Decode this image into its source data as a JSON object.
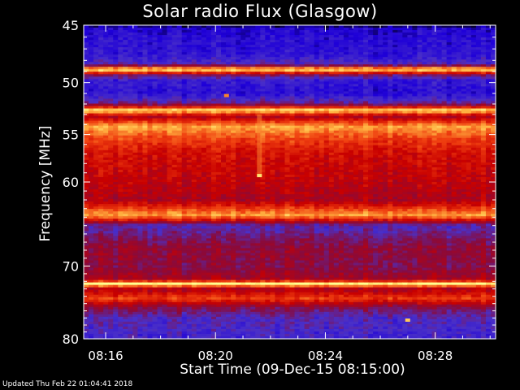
{
  "chart_data": {
    "type": "heatmap",
    "title": "Solar radio Flux (Glasgow)",
    "xlabel": "Start Time (09-Dec-15 08:15:00)",
    "ylabel": "Frequency [MHz]",
    "x_tick_labels": [
      "08:16",
      "08:20",
      "08:24",
      "08:28"
    ],
    "x_ticks_minutes": [
      1,
      5,
      9,
      13
    ],
    "x_range_minutes": [
      0.2,
      15.2
    ],
    "y_tick_values": [
      45,
      50,
      55,
      60,
      70,
      80
    ],
    "y_range": [
      45,
      80
    ],
    "y_scale": "log",
    "colormap": [
      "#000000",
      "#1e00d8",
      "#4a30c8",
      "#8a0a3a",
      "#c80000",
      "#f04010",
      "#ffb040",
      "#ffff90"
    ],
    "frequency_profile": [
      {
        "mhz": 45.0,
        "level": 0.05
      },
      {
        "mhz": 45.3,
        "level": 0.15
      },
      {
        "mhz": 46.0,
        "level": 0.18
      },
      {
        "mhz": 47.5,
        "level": 0.2
      },
      {
        "mhz": 48.4,
        "level": 0.3
      },
      {
        "mhz": 48.8,
        "level": 1.0
      },
      {
        "mhz": 49.3,
        "level": 0.4
      },
      {
        "mhz": 49.8,
        "level": 0.22
      },
      {
        "mhz": 51.0,
        "level": 0.18
      },
      {
        "mhz": 52.0,
        "level": 0.35
      },
      {
        "mhz": 52.6,
        "level": 0.95
      },
      {
        "mhz": 53.2,
        "level": 0.5
      },
      {
        "mhz": 54.2,
        "level": 0.85
      },
      {
        "mhz": 55.5,
        "level": 0.7
      },
      {
        "mhz": 57.0,
        "level": 0.6
      },
      {
        "mhz": 60.0,
        "level": 0.55
      },
      {
        "mhz": 62.0,
        "level": 0.5
      },
      {
        "mhz": 63.8,
        "level": 0.85
      },
      {
        "mhz": 65.0,
        "level": 0.3
      },
      {
        "mhz": 66.5,
        "level": 0.38
      },
      {
        "mhz": 68.0,
        "level": 0.45
      },
      {
        "mhz": 70.0,
        "level": 0.42
      },
      {
        "mhz": 71.8,
        "level": 0.5
      },
      {
        "mhz": 72.3,
        "level": 1.0
      },
      {
        "mhz": 73.0,
        "level": 0.5
      },
      {
        "mhz": 74.3,
        "level": 0.7
      },
      {
        "mhz": 75.5,
        "level": 0.42
      },
      {
        "mhz": 77.0,
        "level": 0.3
      },
      {
        "mhz": 78.5,
        "level": 0.28
      },
      {
        "mhz": 80.0,
        "level": 0.25
      }
    ],
    "features": [
      {
        "kind": "burst",
        "t_minutes": 6.6,
        "mhz_range": [
          53.0,
          59.3
        ],
        "level": 0.8
      },
      {
        "kind": "spot",
        "t_minutes": 6.6,
        "mhz": 59.3,
        "level": 0.95
      },
      {
        "kind": "spot",
        "t_minutes": 5.4,
        "mhz": 51.2,
        "level": 0.8
      },
      {
        "kind": "spot",
        "t_minutes": 12.0,
        "mhz": 77.3,
        "level": 0.9
      }
    ]
  },
  "footer": {
    "updated": "Updated Thu Feb 22 01:04:41 2018"
  }
}
